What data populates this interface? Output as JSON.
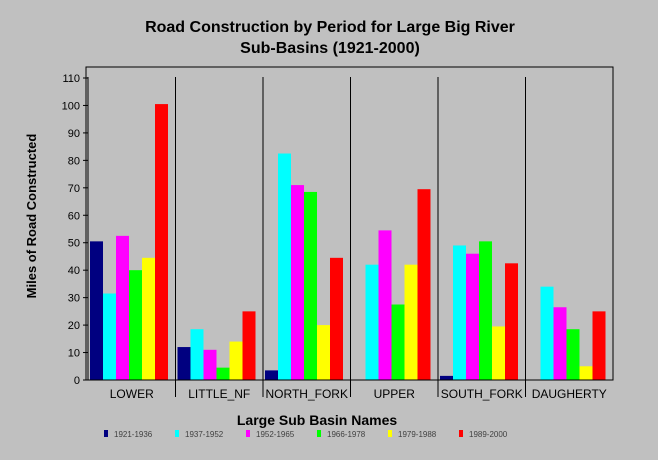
{
  "chart_data": {
    "type": "bar",
    "title": "Road Construction by Period for Large Big River",
    "subtitle": "Sub-Basins (1921-2000)",
    "xlabel": "Large Sub Basin Names",
    "ylabel": "Miles of Road Constructed",
    "ylim": [
      0,
      110
    ],
    "ytick_step": 10,
    "grid": false,
    "legend_position": "bottom",
    "categories": [
      "LOWER",
      "LITTLE_NF",
      "NORTH_FORK",
      "UPPER",
      "SOUTH_FORK",
      "DAUGHERTY"
    ],
    "series": [
      {
        "name": "1921-1936",
        "color": "#000080",
        "values": [
          50.5,
          12,
          3.5,
          0,
          1.5,
          0
        ]
      },
      {
        "name": "1937-1952",
        "color": "#00ffff",
        "values": [
          31.5,
          18.5,
          82.5,
          42,
          49,
          34
        ]
      },
      {
        "name": "1952-1965",
        "color": "#ff00ff",
        "values": [
          52.5,
          11,
          71,
          54.5,
          46,
          26.5
        ]
      },
      {
        "name": "1966-1978",
        "color": "#00ff00",
        "values": [
          40,
          4.5,
          68.5,
          27.5,
          50.5,
          18.5
        ]
      },
      {
        "name": "1979-1988",
        "color": "#ffff00",
        "values": [
          44.5,
          14,
          20,
          42,
          19.5,
          5
        ]
      },
      {
        "name": "1989-2000",
        "color": "#ff0000",
        "values": [
          100.5,
          25,
          44.5,
          69.5,
          42.5,
          25
        ]
      }
    ]
  }
}
